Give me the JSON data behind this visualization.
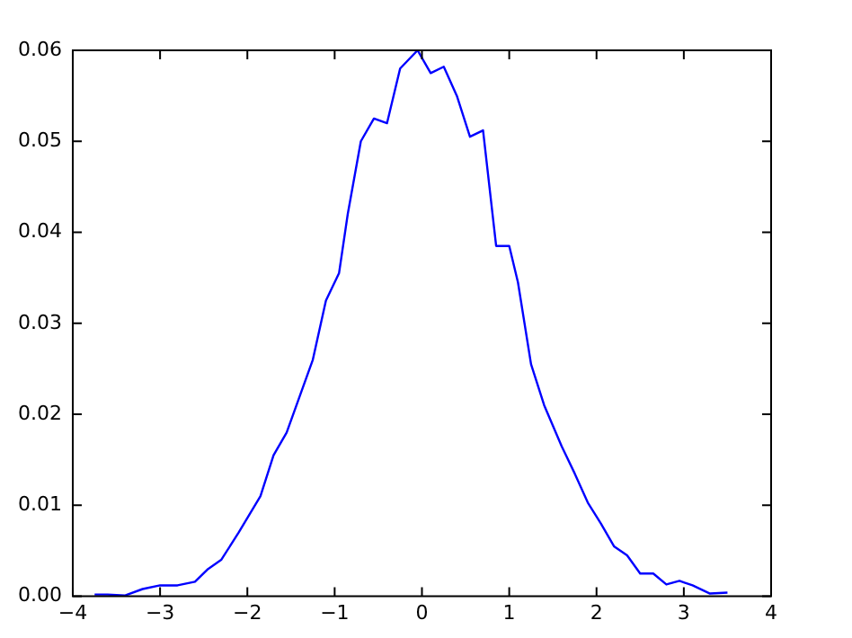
{
  "chart_data": {
    "type": "line",
    "xlim": [
      -4,
      4
    ],
    "xticks": [
      -4,
      -3,
      -2,
      -1,
      0,
      1,
      2,
      3,
      4
    ],
    "ylim": [
      0,
      0.06
    ],
    "yticks": [
      {
        "value": 0,
        "label": "0.00"
      },
      0.01,
      0.02,
      0.03,
      0.04,
      0.05,
      0.06
    ],
    "grid": false,
    "legend": false,
    "series": [
      {
        "color": "#0000ff",
        "x": [
          -3.75,
          -3.6,
          -3.4,
          -3.2,
          -3.0,
          -2.8,
          -2.6,
          -2.45,
          -2.3,
          -2.1,
          -1.85,
          -1.7,
          -1.55,
          -1.4,
          -1.25,
          -1.1,
          -0.95,
          -0.85,
          -0.7,
          -0.55,
          -0.4,
          -0.25,
          -0.05,
          0.1,
          0.25,
          0.4,
          0.55,
          0.7,
          0.85,
          1.0,
          1.1,
          1.25,
          1.4,
          1.6,
          1.75,
          1.9,
          2.05,
          2.2,
          2.35,
          2.5,
          2.65,
          2.8,
          2.95,
          3.1,
          3.3,
          3.5
        ],
        "values": [
          0.0002,
          0.0002,
          0.0001,
          0.0008,
          0.0012,
          0.0012,
          0.0016,
          0.003,
          0.004,
          0.007,
          0.011,
          0.0155,
          0.018,
          0.022,
          0.026,
          0.0325,
          0.0355,
          0.042,
          0.05,
          0.0525,
          0.052,
          0.058,
          0.06,
          0.0575,
          0.0582,
          0.055,
          0.0505,
          0.0512,
          0.0385,
          0.0385,
          0.0345,
          0.0255,
          0.021,
          0.0165,
          0.0135,
          0.0103,
          0.008,
          0.0055,
          0.0045,
          0.0025,
          0.0025,
          0.0013,
          0.0017,
          0.0012,
          0.0003,
          0.0004
        ]
      }
    ]
  }
}
